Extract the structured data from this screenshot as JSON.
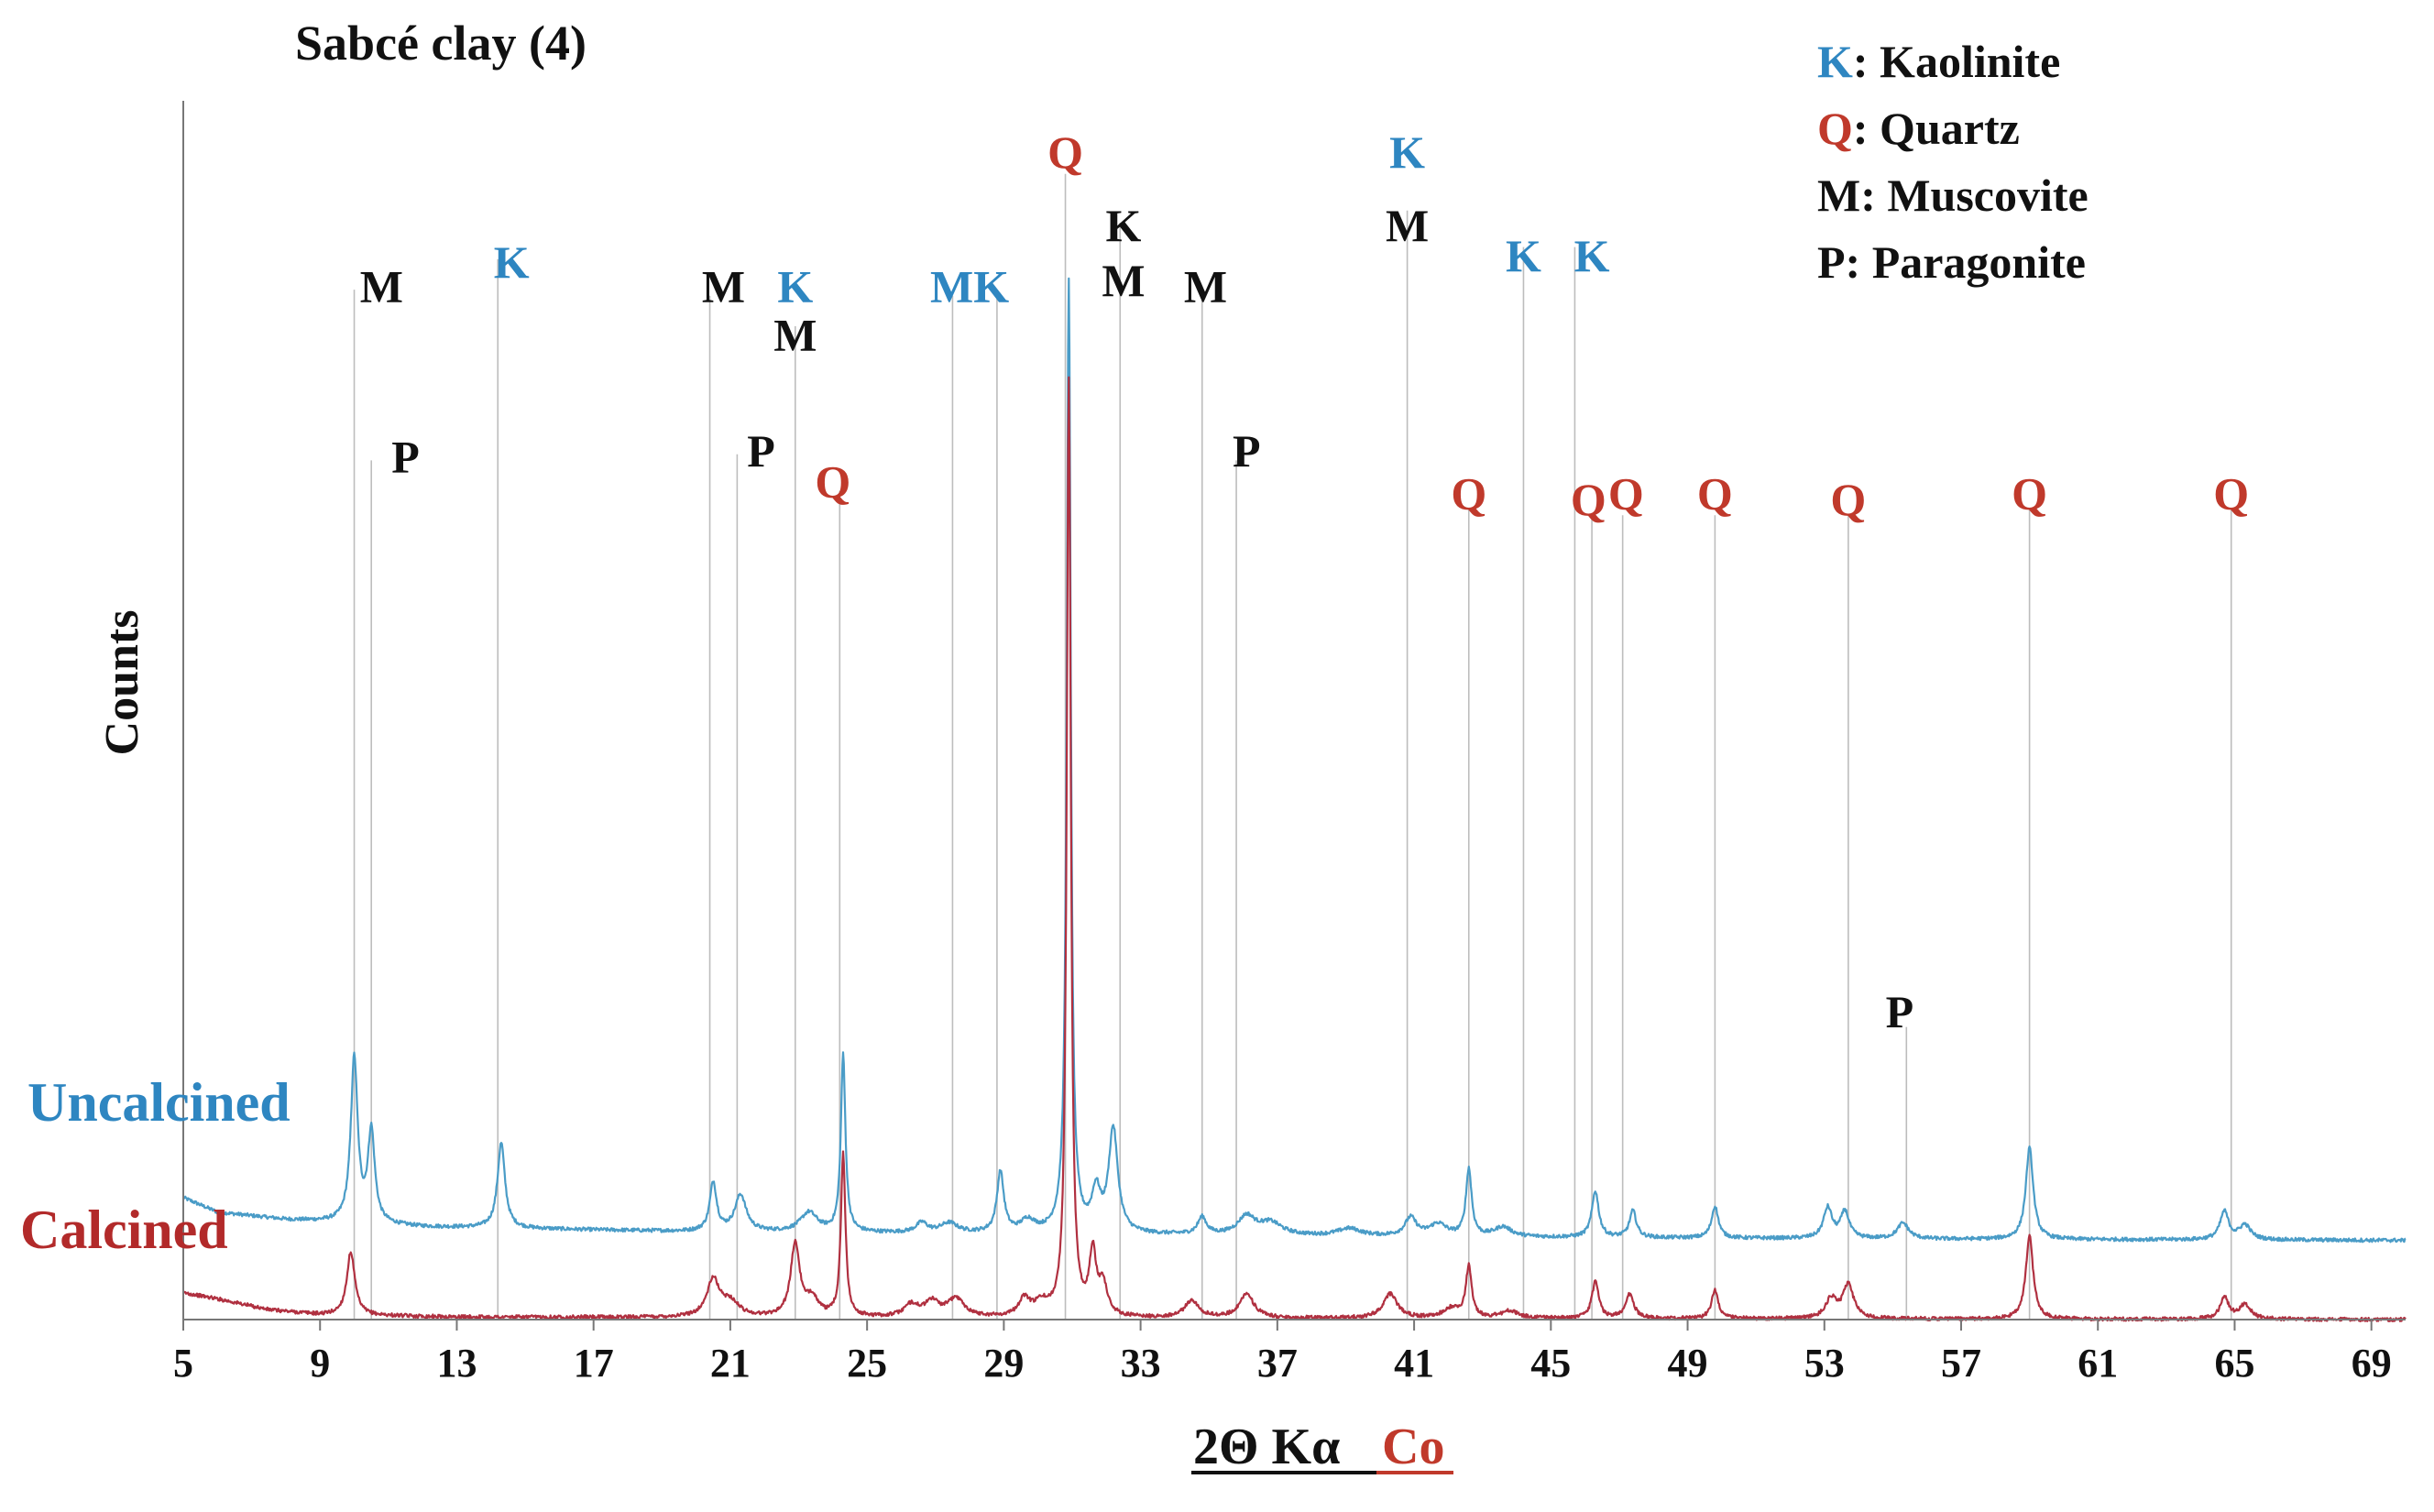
{
  "chart_data": {
    "type": "line",
    "title": "Sabcé clay (4)",
    "xlabel_main": "2Θ Kα",
    "xlabel_suffix": "Co",
    "ylabel": "Counts",
    "xlim": [
      5,
      70
    ],
    "ylim": [
      0,
      100
    ],
    "x_ticks": [
      5,
      9,
      13,
      17,
      21,
      25,
      29,
      33,
      37,
      41,
      45,
      49,
      53,
      57,
      61,
      65,
      69
    ],
    "colors": {
      "kaolinite": "#2e86c1",
      "quartz": "#c0392b",
      "black": "#111111",
      "uncalcined": "#4a9cc7",
      "calcined": "#b03040",
      "guide": "#bdbdbd",
      "axis": "#777777"
    },
    "legend": [
      {
        "key": "K",
        "name": ": Kaolinite",
        "color": "kaolinite"
      },
      {
        "key": "Q",
        "name": ": Quartz",
        "color": "quartz"
      },
      {
        "key": "M",
        "name": ": Muscovite",
        "color": "black"
      },
      {
        "key": "P",
        "name": ": Paragonite",
        "color": "black"
      }
    ],
    "series": [
      {
        "name": "Uncalcined",
        "color": "uncalcined",
        "baseline": [
          [
            5,
            10.0
          ],
          [
            6,
            8.8
          ],
          [
            8,
            8.2
          ],
          [
            12,
            7.6
          ],
          [
            20,
            7.2
          ],
          [
            30,
            7.0
          ],
          [
            40,
            6.8
          ],
          [
            55,
            6.6
          ],
          [
            70,
            6.5
          ]
        ],
        "peaks": [
          [
            10.0,
            13.5,
            0.12
          ],
          [
            10.5,
            7.5,
            0.12
          ],
          [
            14.3,
            7.0,
            0.13
          ],
          [
            20.5,
            4.0,
            0.12
          ],
          [
            21.3,
            3.0,
            0.2
          ],
          [
            23.3,
            1.6,
            0.3
          ],
          [
            24.3,
            14.5,
            0.08
          ],
          [
            26.6,
            0.8,
            0.2
          ],
          [
            27.4,
            0.8,
            0.3
          ],
          [
            28.9,
            5.0,
            0.12
          ],
          [
            29.7,
            1.0,
            0.25
          ],
          [
            30.9,
            78,
            0.07
          ],
          [
            31.7,
            3.2,
            0.15
          ],
          [
            32.2,
            8.5,
            0.16
          ],
          [
            34.8,
            1.4,
            0.15
          ],
          [
            36.1,
            1.5,
            0.3
          ],
          [
            36.8,
            1.0,
            0.4
          ],
          [
            39.1,
            0.6,
            0.4
          ],
          [
            40.9,
            1.5,
            0.2
          ],
          [
            41.7,
            1.0,
            0.3
          ],
          [
            42.6,
            5.5,
            0.1
          ],
          [
            43.6,
            0.8,
            0.3
          ],
          [
            46.3,
            3.8,
            0.12
          ],
          [
            47.4,
            2.2,
            0.12
          ],
          [
            49.8,
            2.6,
            0.12
          ],
          [
            53.1,
            2.5,
            0.15
          ],
          [
            53.6,
            2.2,
            0.15
          ],
          [
            55.3,
            1.3,
            0.2
          ],
          [
            59.0,
            7.5,
            0.13
          ],
          [
            64.7,
            2.3,
            0.15
          ],
          [
            65.3,
            1.2,
            0.2
          ]
        ]
      },
      {
        "name": "Calcined",
        "color": "calcined",
        "baseline": [
          [
            5,
            2.2
          ],
          [
            6,
            1.7
          ],
          [
            7.5,
            0.8
          ],
          [
            9,
            0.4
          ],
          [
            13,
            0.2
          ],
          [
            30,
            0.1
          ],
          [
            70,
            0.0
          ]
        ],
        "peaks": [
          [
            9.9,
            5.2,
            0.14
          ],
          [
            20.5,
            3.0,
            0.22
          ],
          [
            21.0,
            1.2,
            0.3
          ],
          [
            22.9,
            6.0,
            0.16
          ],
          [
            23.4,
            1.5,
            0.2
          ],
          [
            24.3,
            13.3,
            0.08
          ],
          [
            26.3,
            1.0,
            0.25
          ],
          [
            26.9,
            1.2,
            0.25
          ],
          [
            27.6,
            1.5,
            0.3
          ],
          [
            29.6,
            1.4,
            0.2
          ],
          [
            30.1,
            1.0,
            0.25
          ],
          [
            30.9,
            77,
            0.07
          ],
          [
            31.6,
            5.0,
            0.12
          ],
          [
            31.9,
            2.5,
            0.15
          ],
          [
            34.5,
            1.4,
            0.25
          ],
          [
            36.1,
            2.0,
            0.25
          ],
          [
            40.3,
            2.0,
            0.25
          ],
          [
            42.1,
            0.8,
            0.3
          ],
          [
            42.6,
            4.2,
            0.1
          ],
          [
            43.8,
            0.6,
            0.3
          ],
          [
            46.3,
            3.0,
            0.12
          ],
          [
            47.3,
            2.0,
            0.15
          ],
          [
            49.8,
            2.4,
            0.12
          ],
          [
            53.2,
            1.6,
            0.2
          ],
          [
            53.7,
            2.8,
            0.18
          ],
          [
            59.0,
            6.8,
            0.13
          ],
          [
            64.7,
            1.8,
            0.15
          ],
          [
            65.3,
            1.2,
            0.2
          ]
        ]
      }
    ],
    "phase_lines": [
      {
        "x": 10.0,
        "top": 84.5
      },
      {
        "x": 10.5,
        "top": 70.5
      },
      {
        "x": 14.2,
        "top": 87
      },
      {
        "x": 20.4,
        "top": 84
      },
      {
        "x": 21.2,
        "top": 71
      },
      {
        "x": 22.9,
        "top": 81.5
      },
      {
        "x": 24.2,
        "top": 68
      },
      {
        "x": 27.5,
        "top": 84
      },
      {
        "x": 28.8,
        "top": 84
      },
      {
        "x": 30.8,
        "top": 94
      },
      {
        "x": 32.4,
        "top": 90
      },
      {
        "x": 34.8,
        "top": 84.5
      },
      {
        "x": 35.8,
        "top": 70.5
      },
      {
        "x": 40.8,
        "top": 91
      },
      {
        "x": 42.6,
        "top": 66.5
      },
      {
        "x": 44.2,
        "top": 88
      },
      {
        "x": 45.7,
        "top": 88
      },
      {
        "x": 46.2,
        "top": 66
      },
      {
        "x": 47.1,
        "top": 66
      },
      {
        "x": 49.8,
        "top": 66
      },
      {
        "x": 53.7,
        "top": 66
      },
      {
        "x": 55.4,
        "top": 24
      },
      {
        "x": 59.0,
        "top": 66.5
      },
      {
        "x": 64.9,
        "top": 66.5
      }
    ],
    "annotations": [
      {
        "text": "M",
        "x": 10.8,
        "y": 83.5,
        "color": "black"
      },
      {
        "text": "P",
        "x": 11.5,
        "y": 69.5,
        "color": "black"
      },
      {
        "text": "K",
        "x": 14.6,
        "y": 85.5,
        "color": "kaolinite"
      },
      {
        "text": "M",
        "x": 20.8,
        "y": 83.5,
        "color": "black"
      },
      {
        "text": "K",
        "x": 22.9,
        "y": 83.5,
        "color": "kaolinite"
      },
      {
        "text": "P",
        "x": 21.9,
        "y": 70.0,
        "color": "black"
      },
      {
        "text": "M",
        "x": 22.9,
        "y": 79.5,
        "color": "black"
      },
      {
        "text": "Q",
        "x": 24.0,
        "y": 67.5,
        "color": "quartz"
      },
      {
        "text": "MK",
        "x": 28.0,
        "y": 83.5,
        "color": "kaolinite"
      },
      {
        "text": "Q",
        "x": 30.8,
        "y": 94.5,
        "color": "quartz"
      },
      {
        "text": "K",
        "x": 32.5,
        "y": 88.5,
        "color": "black"
      },
      {
        "text": "M",
        "x": 32.5,
        "y": 84.0,
        "color": "black"
      },
      {
        "text": "M",
        "x": 34.9,
        "y": 83.5,
        "color": "black"
      },
      {
        "text": "P",
        "x": 36.1,
        "y": 70.0,
        "color": "black"
      },
      {
        "text": "K",
        "x": 40.8,
        "y": 94.5,
        "color": "kaolinite"
      },
      {
        "text": "M",
        "x": 40.8,
        "y": 88.5,
        "color": "black"
      },
      {
        "text": "Q",
        "x": 42.6,
        "y": 66.5,
        "color": "quartz"
      },
      {
        "text": "K",
        "x": 44.2,
        "y": 86.0,
        "color": "kaolinite"
      },
      {
        "text": "K",
        "x": 46.2,
        "y": 86.0,
        "color": "kaolinite"
      },
      {
        "text": "Q",
        "x": 46.1,
        "y": 66.0,
        "color": "quartz"
      },
      {
        "text": "Q",
        "x": 47.2,
        "y": 66.5,
        "color": "quartz"
      },
      {
        "text": "Q",
        "x": 49.8,
        "y": 66.5,
        "color": "quartz"
      },
      {
        "text": "Q",
        "x": 53.7,
        "y": 66.0,
        "color": "quartz"
      },
      {
        "text": "P",
        "x": 55.2,
        "y": 24.0,
        "color": "black"
      },
      {
        "text": "Q",
        "x": 59.0,
        "y": 66.5,
        "color": "quartz"
      },
      {
        "text": "Q",
        "x": 64.9,
        "y": 66.5,
        "color": "quartz"
      }
    ]
  }
}
